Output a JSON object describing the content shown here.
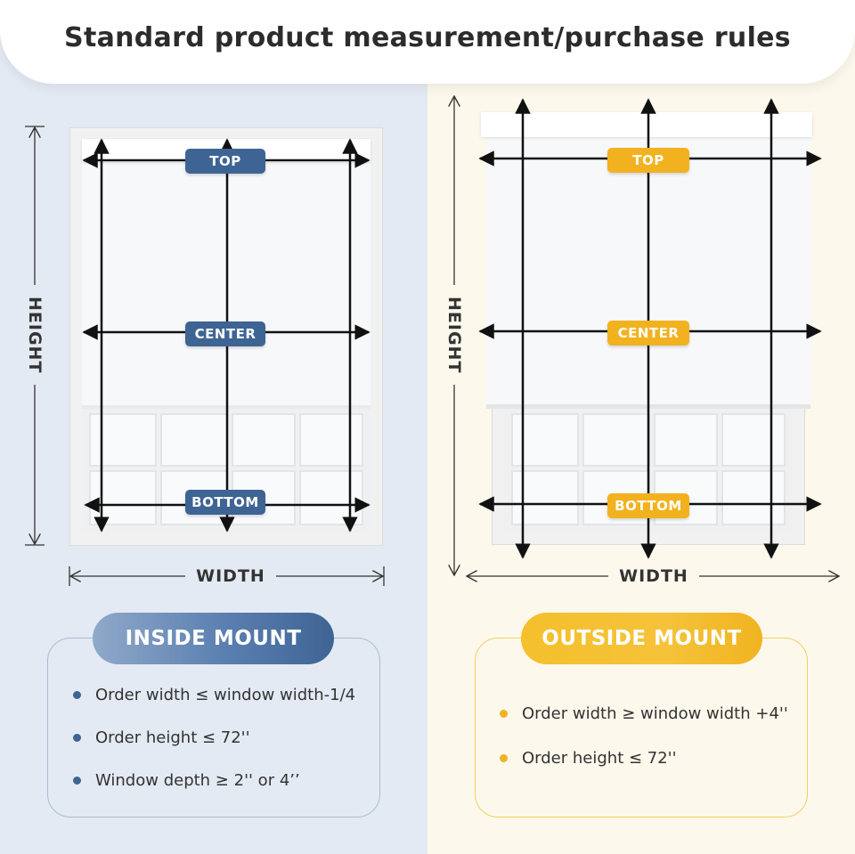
{
  "title": "Standard product measurement/purchase rules",
  "colors": {
    "blue": "#3e6494",
    "yellow": "#f2b21f",
    "left_bg": "#e4eaf3",
    "right_bg": "#fdf8ec"
  },
  "inside": {
    "tags": {
      "top": "TOP",
      "center": "CENTER",
      "bottom": "BOTTOM"
    },
    "height_label": "HEIGHT",
    "width_label": "WIDTH",
    "mount_title": "INSIDE MOUNT",
    "rules": [
      "Order width ≤ window width-1/4",
      "Order height ≤ 72''",
      "Window depth ≥ 2'' or 4’’"
    ]
  },
  "outside": {
    "tags": {
      "top": "TOP",
      "center": "CENTER",
      "bottom": "BOTTOM"
    },
    "height_label": "HEIGHT",
    "width_label": "WIDTH",
    "mount_title": "OUTSIDE MOUNT",
    "rules": [
      "Order width ≥ window width +4''",
      "Order height ≤ 72''"
    ]
  }
}
